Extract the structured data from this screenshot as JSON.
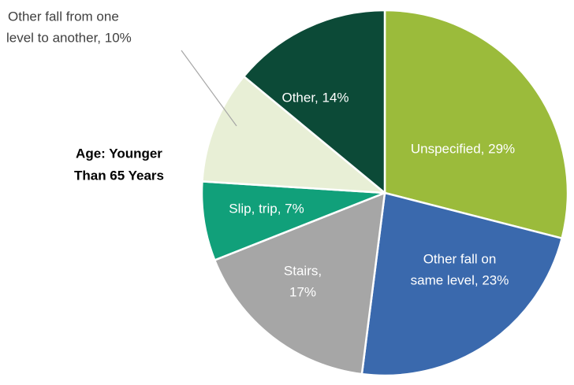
{
  "chart_data": {
    "type": "pie",
    "title": [
      "Age: Younger",
      "Than 65 Years"
    ],
    "values": [
      29,
      23,
      17,
      7,
      10,
      14
    ],
    "value_labels": [
      [
        "Unspecified, 29%"
      ],
      [
        "Other fall on",
        "same level, 23%"
      ],
      [
        "Stairs,",
        "17%"
      ],
      [
        "Slip, trip, 7%"
      ],
      [
        "Other fall from one",
        "level to another, 10%"
      ],
      [
        "Other, 14%"
      ]
    ],
    "colors": [
      "#9bbb3b",
      "#3a69ad",
      "#a6a6a6",
      "#11a07a",
      "#e8efd6",
      "#0c4a37"
    ]
  }
}
